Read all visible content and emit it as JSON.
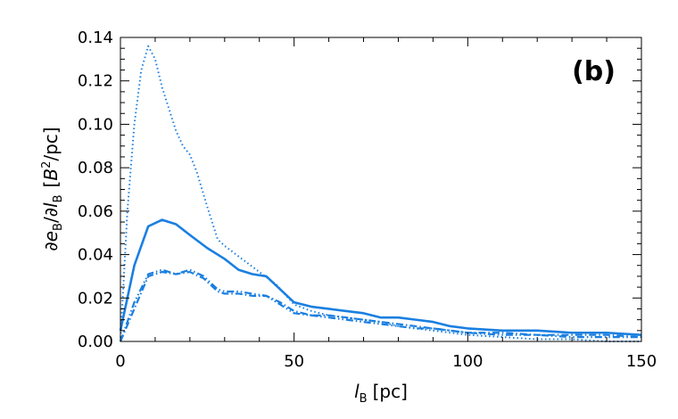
{
  "chart_data": {
    "type": "line",
    "panel_label": "(b)",
    "xlabel": "l_B [pc]",
    "xlabel_parts": {
      "var": "l",
      "sub": "B",
      "unit": "[pc]"
    },
    "ylabel": "∂e_B/∂l_B [B²/pc]",
    "ylabel_parts": {
      "d1": "∂",
      "var1": "e",
      "sub1": "B",
      "slash": "/∂",
      "var2": "l",
      "sub2": "B",
      "unit_open": "[",
      "unit_var": "B",
      "unit_sup": "2",
      "unit_close": "/pc]"
    },
    "xlim": [
      0,
      150
    ],
    "ylim": [
      0,
      0.14
    ],
    "xticks": [
      "0",
      "50",
      "100",
      "150"
    ],
    "xtick_values": [
      0,
      50,
      100,
      150
    ],
    "yticks": [
      "0.00",
      "0.02",
      "0.04",
      "0.06",
      "0.08",
      "0.10",
      "0.12",
      "0.14"
    ],
    "ytick_values": [
      0,
      0.02,
      0.04,
      0.06,
      0.08,
      0.1,
      0.12,
      0.14
    ],
    "grid": false,
    "color": "#1a7fe0",
    "series": [
      {
        "style": "solid",
        "x": [
          0,
          4,
          8,
          12,
          16,
          20,
          25,
          30,
          34,
          38,
          42,
          46,
          50,
          55,
          60,
          65,
          70,
          75,
          80,
          85,
          90,
          95,
          100,
          110,
          120,
          130,
          140,
          150
        ],
        "y": [
          0.005,
          0.035,
          0.053,
          0.056,
          0.054,
          0.049,
          0.043,
          0.038,
          0.033,
          0.031,
          0.03,
          0.024,
          0.018,
          0.016,
          0.015,
          0.014,
          0.013,
          0.011,
          0.011,
          0.01,
          0.009,
          0.007,
          0.006,
          0.005,
          0.005,
          0.004,
          0.004,
          0.003
        ]
      },
      {
        "style": "dotted",
        "x": [
          0,
          2,
          4,
          6,
          8,
          10,
          12,
          14,
          16,
          18,
          20,
          22,
          25,
          28,
          30,
          35,
          40,
          45,
          50,
          55,
          60,
          65,
          70,
          75,
          80,
          85,
          90,
          95,
          100,
          110,
          120,
          130,
          140,
          150
        ],
        "y": [
          0.0,
          0.06,
          0.1,
          0.125,
          0.136,
          0.13,
          0.117,
          0.107,
          0.097,
          0.09,
          0.086,
          0.078,
          0.062,
          0.047,
          0.044,
          0.038,
          0.032,
          0.026,
          0.017,
          0.014,
          0.012,
          0.011,
          0.01,
          0.009,
          0.007,
          0.006,
          0.005,
          0.004,
          0.003,
          0.002,
          0.001,
          0.001,
          0.0,
          0.0
        ]
      },
      {
        "style": "dash-dot",
        "x": [
          0,
          4,
          8,
          12,
          16,
          20,
          24,
          28,
          30,
          34,
          38,
          42,
          46,
          50,
          55,
          60,
          65,
          70,
          75,
          80,
          85,
          90,
          95,
          100,
          110,
          120,
          130,
          140,
          150
        ],
        "y": [
          0.0,
          0.015,
          0.03,
          0.032,
          0.031,
          0.032,
          0.029,
          0.023,
          0.022,
          0.022,
          0.021,
          0.021,
          0.018,
          0.014,
          0.012,
          0.012,
          0.011,
          0.01,
          0.009,
          0.008,
          0.007,
          0.006,
          0.005,
          0.004,
          0.004,
          0.003,
          0.003,
          0.003,
          0.002
        ]
      },
      {
        "style": "dash-dot-dot",
        "x": [
          0,
          4,
          8,
          12,
          16,
          20,
          24,
          28,
          30,
          34,
          38,
          42,
          46,
          50,
          55,
          60,
          65,
          70,
          75,
          80,
          85,
          90,
          95,
          100,
          110,
          120,
          130,
          140,
          150
        ],
        "y": [
          0.0,
          0.018,
          0.031,
          0.033,
          0.031,
          0.033,
          0.03,
          0.024,
          0.023,
          0.023,
          0.022,
          0.021,
          0.017,
          0.013,
          0.012,
          0.011,
          0.01,
          0.009,
          0.008,
          0.007,
          0.006,
          0.006,
          0.005,
          0.004,
          0.003,
          0.003,
          0.002,
          0.002,
          0.002
        ]
      }
    ]
  }
}
